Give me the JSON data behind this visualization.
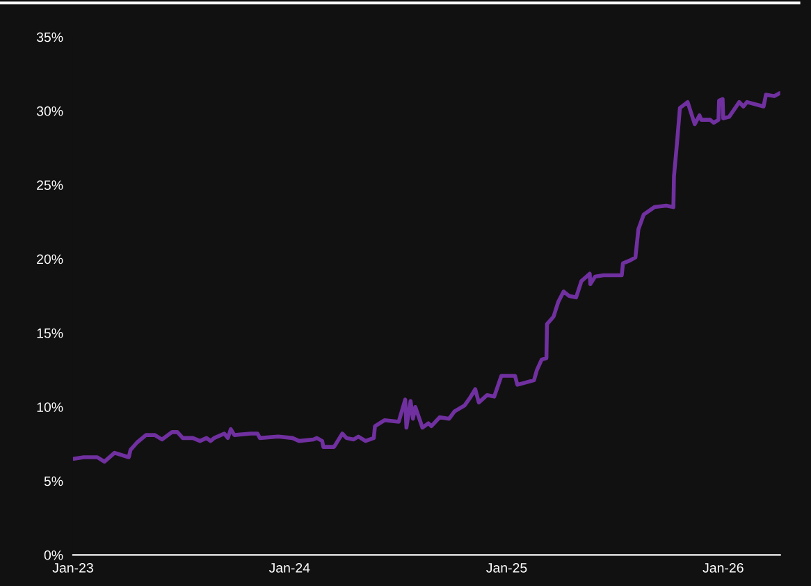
{
  "chart_data": {
    "type": "line",
    "x": [
      "2023-01-02",
      "2023-01-19",
      "2023-02-11",
      "2023-02-23",
      "2023-03-12",
      "2023-04-05",
      "2023-04-08",
      "2023-04-19",
      "2023-05-04",
      "2023-05-19",
      "2023-05-31",
      "2023-06-17",
      "2023-06-26",
      "2023-07-05",
      "2023-07-22",
      "2023-08-03",
      "2023-08-14",
      "2023-08-21",
      "2023-08-27",
      "2023-09-13",
      "2023-09-19",
      "2023-09-24",
      "2023-09-30",
      "2023-10-27",
      "2023-11-08",
      "2023-11-12",
      "2023-12-13",
      "2024-01-06",
      "2024-01-17",
      "2024-02-10",
      "2024-02-16",
      "2024-02-25",
      "2024-02-27",
      "2024-03-16",
      "2024-03-30",
      "2024-04-06",
      "2024-04-18",
      "2024-04-26",
      "2024-05-08",
      "2024-05-22",
      "2024-05-24",
      "2024-06-09",
      "2024-07-03",
      "2024-07-14",
      "2024-07-16",
      "2024-07-23",
      "2024-07-27",
      "2024-07-31",
      "2024-08-12",
      "2024-08-22",
      "2024-08-27",
      "2024-09-10",
      "2024-09-26",
      "2024-10-05",
      "2024-10-22",
      "2024-10-31",
      "2024-11-09",
      "2024-11-15",
      "2024-11-29",
      "2024-12-11",
      "2024-12-23",
      "2025-01-15",
      "2025-01-19",
      "2025-02-16",
      "2025-02-21",
      "2025-03-01",
      "2025-03-09",
      "2025-03-10",
      "2025-03-21",
      "2025-03-29",
      "2025-04-07",
      "2025-04-16",
      "2025-04-28",
      "2025-05-07",
      "2025-05-21",
      "2025-05-22",
      "2025-05-30",
      "2025-06-13",
      "2025-07-14",
      "2025-07-16",
      "2025-07-28",
      "2025-08-06",
      "2025-08-11",
      "2025-08-20",
      "2025-09-07",
      "2025-09-27",
      "2025-10-09",
      "2025-10-10",
      "2025-10-15",
      "2025-10-20",
      "2025-11-02",
      "2025-11-14",
      "2025-11-22",
      "2025-11-25",
      "2025-12-10",
      "2025-12-16",
      "2025-12-24",
      "2025-12-25",
      "2025-12-31",
      "2026-01-01",
      "2026-01-11",
      "2026-01-28",
      "2026-02-04",
      "2026-02-10",
      "2026-03-10",
      "2026-03-14",
      "2026-03-28",
      "2026-04-06"
    ],
    "series": [
      {
        "color": "#7030a0",
        "values": [
          6.5,
          6.6,
          6.6,
          6.3,
          6.9,
          6.6,
          7.1,
          7.6,
          8.1,
          8.1,
          7.8,
          8.3,
          8.3,
          7.9,
          7.9,
          7.7,
          7.9,
          7.7,
          7.9,
          8.2,
          7.9,
          8.5,
          8.1,
          8.2,
          8.2,
          7.9,
          8.0,
          7.9,
          7.7,
          7.8,
          7.9,
          7.7,
          7.3,
          7.3,
          8.2,
          7.9,
          7.8,
          8.0,
          7.7,
          7.9,
          8.7,
          9.1,
          9.0,
          10.5,
          8.6,
          10.4,
          9.2,
          10.0,
          8.6,
          8.9,
          8.7,
          9.3,
          9.2,
          9.7,
          10.1,
          10.6,
          11.2,
          10.3,
          10.8,
          10.7,
          12.1,
          12.1,
          11.5,
          11.8,
          12.5,
          13.2,
          13.3,
          15.6,
          16.1,
          17.1,
          17.8,
          17.5,
          17.4,
          18.5,
          19.0,
          18.3,
          18.8,
          18.9,
          18.9,
          19.7,
          19.9,
          20.1,
          22.0,
          23.0,
          23.5,
          23.6,
          23.5,
          25.6,
          27.8,
          30.2,
          30.6,
          29.1,
          29.7,
          29.4,
          29.4,
          29.2,
          29.4,
          30.7,
          30.8,
          29.5,
          29.6,
          30.6,
          30.3,
          30.6,
          30.3,
          31.1,
          31.0,
          31.2
        ]
      }
    ],
    "xlim": [
      "2023-01-01",
      "2026-04-07"
    ],
    "xticks": [
      {
        "value": "2023-01-01",
        "label": "Jan-23"
      },
      {
        "value": "2024-01-01",
        "label": "Jan-24"
      },
      {
        "value": "2025-01-01",
        "label": "Jan-25"
      },
      {
        "value": "2026-01-01",
        "label": "Jan-26"
      }
    ],
    "ylim": [
      0,
      35
    ],
    "yticks": [
      {
        "value": 0,
        "label": "0%"
      },
      {
        "value": 5,
        "label": "5%"
      },
      {
        "value": 10,
        "label": "10%"
      },
      {
        "value": 15,
        "label": "15%"
      },
      {
        "value": 20,
        "label": "20%"
      },
      {
        "value": 25,
        "label": "25%"
      },
      {
        "value": 30,
        "label": "30%"
      },
      {
        "value": 35,
        "label": "35%"
      }
    ],
    "grid": false,
    "marker": "none",
    "line_style": "solid"
  }
}
